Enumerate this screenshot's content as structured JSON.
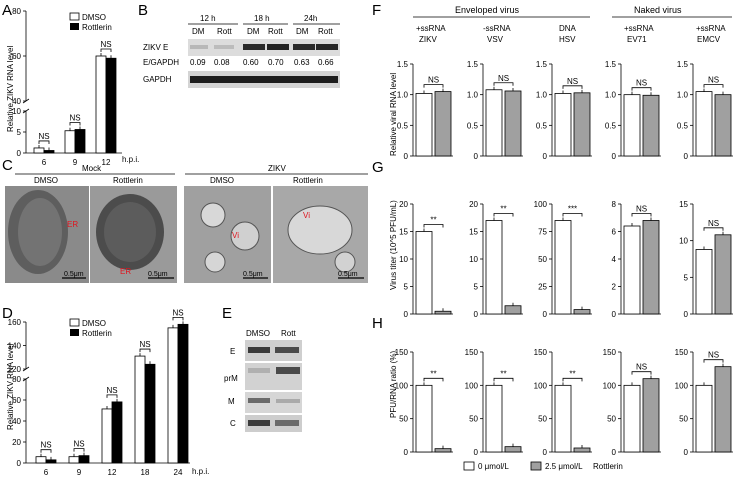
{
  "panel_labels": {
    "A": "A",
    "B": "B",
    "C": "C",
    "D": "D",
    "E": "E",
    "F": "F",
    "G": "G",
    "H": "H"
  },
  "colors": {
    "dmso": "#ffffff",
    "rottlerin": "#000000",
    "vehicle": "#ffffff",
    "treated": "#a0a0a0",
    "er_label": "#e0141e"
  },
  "legend_AD": {
    "dmso": "DMSO",
    "rottlerin": "Rottlerin"
  },
  "hpi": "h.p.i.",
  "ns": "NS",
  "panel_B": {
    "times": [
      "12 h",
      "18 h",
      "24h"
    ],
    "lanes": [
      "DM",
      "Rott",
      "DM",
      "Rott",
      "DM",
      "Rott"
    ],
    "row1": "ZIKV E",
    "ratio_label": "E/GAPDH",
    "ratios": [
      "0.09",
      "0.08",
      "0.60",
      "0.70",
      "0.63",
      "0.66"
    ],
    "row2": "GAPDH"
  },
  "panel_C": {
    "groups": [
      "Mock",
      "ZIKV"
    ],
    "cols": [
      "DMSO",
      "Rottlerin",
      "DMSO",
      "Rottlerin"
    ],
    "labels": [
      "ER",
      "ER",
      "Vi",
      "Vi"
    ],
    "scale": "0.5μm"
  },
  "panel_E": {
    "lanes": [
      "DMSO",
      "Rott"
    ],
    "bands": [
      "E",
      "prM",
      "M",
      "C"
    ]
  },
  "panel_F_header": {
    "enveloped": "Enveloped virus",
    "naked": "Naked virus",
    "virus_groups": [
      [
        "+ssRNA",
        "ZIKV"
      ],
      [
        "-ssRNA",
        "VSV"
      ],
      [
        "DNA",
        "HSV"
      ],
      [
        "+ssRNA",
        "EV71"
      ],
      [
        "+ssRNA",
        "EMCV"
      ]
    ]
  },
  "legend_FGH": {
    "vehicle": "0 μmol/L",
    "treated": "2.5 μmol/L",
    "drug": "Rottlerin"
  },
  "chart_data": [
    {
      "panel": "A",
      "type": "bar",
      "categories": [
        "6",
        "9",
        "12"
      ],
      "xlabel": "h.p.i.",
      "ylabel": "Relative ZIKV RNA level",
      "y_ticks_lower": [
        "0",
        "5",
        "10"
      ],
      "y_ticks_upper": [
        "40",
        "60",
        "80"
      ],
      "series": [
        {
          "name": "DMSO",
          "values": [
            1.2,
            5.3,
            60
          ]
        },
        {
          "name": "Rottlerin",
          "values": [
            0.6,
            5.6,
            59
          ]
        }
      ],
      "annotations": [
        "NS",
        "NS",
        "NS"
      ]
    },
    {
      "panel": "D",
      "type": "bar",
      "categories": [
        "6",
        "9",
        "12",
        "18",
        "24"
      ],
      "xlabel": "h.p.i.",
      "ylabel": "Relative ZIKV RNA level",
      "y_ticks_lower": [
        "0",
        "20",
        "40",
        "60",
        "80"
      ],
      "y_ticks_upper": [
        "120",
        "140",
        "160"
      ],
      "series": [
        {
          "name": "DMSO",
          "values": [
            6,
            6,
            86,
            131,
            155
          ]
        },
        {
          "name": "Rottlerin",
          "values": [
            3,
            7,
            92,
            124,
            158
          ]
        }
      ],
      "annotations": [
        "NS",
        "NS",
        "NS",
        "NS",
        "NS"
      ]
    },
    {
      "panel": "F",
      "type": "bar",
      "ylabel": "Relative viral RNA level",
      "y_ticks": [
        "0",
        "0.5",
        "1.0",
        "1.5"
      ],
      "ylim": [
        0,
        1.5
      ],
      "subplots": [
        {
          "virus": "ZIKV",
          "values": [
            1.02,
            1.05
          ],
          "sig": "NS"
        },
        {
          "virus": "VSV",
          "values": [
            1.08,
            1.06
          ],
          "sig": "NS"
        },
        {
          "virus": "HSV",
          "values": [
            1.02,
            1.03
          ],
          "sig": "NS"
        },
        {
          "virus": "EV71",
          "values": [
            1.0,
            0.99
          ],
          "sig": "NS"
        },
        {
          "virus": "EMCV",
          "values": [
            1.05,
            1.0
          ],
          "sig": "NS"
        }
      ]
    },
    {
      "panel": "G",
      "type": "bar",
      "ylabel": "Virus titer (10^5 PFU/mL)",
      "subplots": [
        {
          "virus": "ZIKV",
          "ylim": [
            0,
            20
          ],
          "y_ticks": [
            "0",
            "5",
            "10",
            "15",
            "20"
          ],
          "values": [
            15,
            0.5
          ],
          "sig": "**"
        },
        {
          "virus": "VSV",
          "ylim": [
            0,
            20
          ],
          "y_ticks": [
            "0",
            "5",
            "10",
            "15",
            "20"
          ],
          "values": [
            17,
            1.5
          ],
          "sig": "**"
        },
        {
          "virus": "HSV",
          "ylim": [
            0,
            100
          ],
          "y_ticks": [
            "0",
            "25",
            "50",
            "75",
            "100"
          ],
          "values": [
            85,
            4
          ],
          "sig": "***"
        },
        {
          "virus": "EV71",
          "ylim": [
            0,
            8
          ],
          "y_ticks": [
            "0",
            "2",
            "4",
            "6",
            "8"
          ],
          "values": [
            6.4,
            6.8
          ],
          "sig": "NS"
        },
        {
          "virus": "EMCV",
          "ylim": [
            0,
            15
          ],
          "y_ticks": [
            "0",
            "5",
            "10",
            "15"
          ],
          "values": [
            8.8,
            10.8
          ],
          "sig": "NS"
        }
      ]
    },
    {
      "panel": "H",
      "type": "bar",
      "ylabel": "PFU/RNA ratio (%)",
      "subplots": [
        {
          "virus": "ZIKV",
          "ylim": [
            0,
            150
          ],
          "y_ticks": [
            "0",
            "50",
            "100",
            "150"
          ],
          "values": [
            100,
            5
          ],
          "sig": "**"
        },
        {
          "virus": "VSV",
          "ylim": [
            0,
            150
          ],
          "y_ticks": [
            "0",
            "50",
            "100",
            "150"
          ],
          "values": [
            100,
            8
          ],
          "sig": "**"
        },
        {
          "virus": "HSV",
          "ylim": [
            0,
            150
          ],
          "y_ticks": [
            "0",
            "50",
            "100",
            "150"
          ],
          "values": [
            100,
            6
          ],
          "sig": "**"
        },
        {
          "virus": "EV71",
          "ylim": [
            0,
            150
          ],
          "y_ticks": [
            "0",
            "50",
            "100",
            "150"
          ],
          "values": [
            100,
            110
          ],
          "sig": "NS"
        },
        {
          "virus": "EMCV",
          "ylim": [
            0,
            150
          ],
          "y_ticks": [
            "0",
            "50",
            "100",
            "150"
          ],
          "values": [
            100,
            128
          ],
          "sig": "NS"
        }
      ]
    }
  ]
}
